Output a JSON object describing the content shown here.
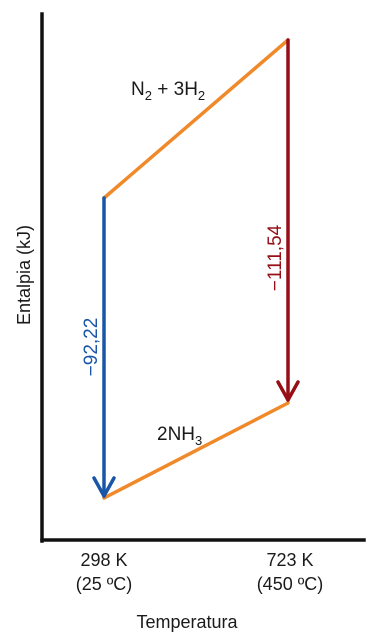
{
  "axes": {
    "ylabel": "Entalpia (kJ)",
    "xlabel": "Temperatura",
    "ticks": [
      {
        "line1": "298 K",
        "line2": "(25 ºC)"
      },
      {
        "line1": "723 K",
        "line2": "(450 ºC)"
      }
    ]
  },
  "species": {
    "reactants": {
      "base1": "N",
      "sub1": "2",
      "mid": " + 3H",
      "sub2": "2"
    },
    "products": {
      "base1": "2NH",
      "sub1": "3"
    }
  },
  "enthalpy_changes": {
    "at_298K": "−92,22",
    "at_723K": "−111,54"
  },
  "colors": {
    "axis": "#111111",
    "path_line": "#f0892a",
    "arrow_298K": "#1a56a8",
    "arrow_723K": "#960f17"
  }
}
